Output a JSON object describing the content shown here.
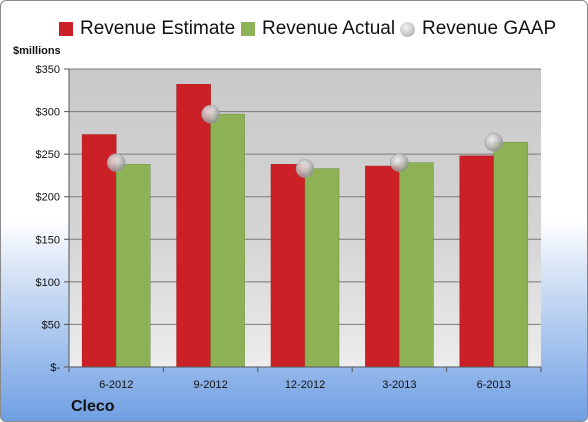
{
  "chart_data": {
    "type": "bar",
    "ylabel": "$millions",
    "ylim": [
      0,
      350
    ],
    "y_ticks": [
      0,
      50,
      100,
      150,
      200,
      250,
      300,
      350
    ],
    "y_tick_labels": [
      "$-",
      "$50",
      "$100",
      "$150",
      "$200",
      "$250",
      "$300",
      "$350"
    ],
    "categories": [
      "6-2012",
      "9-2012",
      "12-2012",
      "3-2013",
      "6-2013"
    ],
    "series": [
      {
        "name": "Revenue Estimate",
        "kind": "bar",
        "color": "#cc2027",
        "values": [
          273,
          332,
          238,
          236,
          248
        ]
      },
      {
        "name": "Revenue Actual",
        "kind": "bar",
        "color": "#8db256",
        "values": [
          238,
          297,
          233,
          240,
          264
        ]
      },
      {
        "name": "Revenue GAAP",
        "kind": "marker",
        "color": "#b9b9b9",
        "values": [
          240,
          297,
          233,
          240,
          264
        ]
      }
    ],
    "grid": true,
    "legend_position": "top"
  },
  "company": "Cleco"
}
